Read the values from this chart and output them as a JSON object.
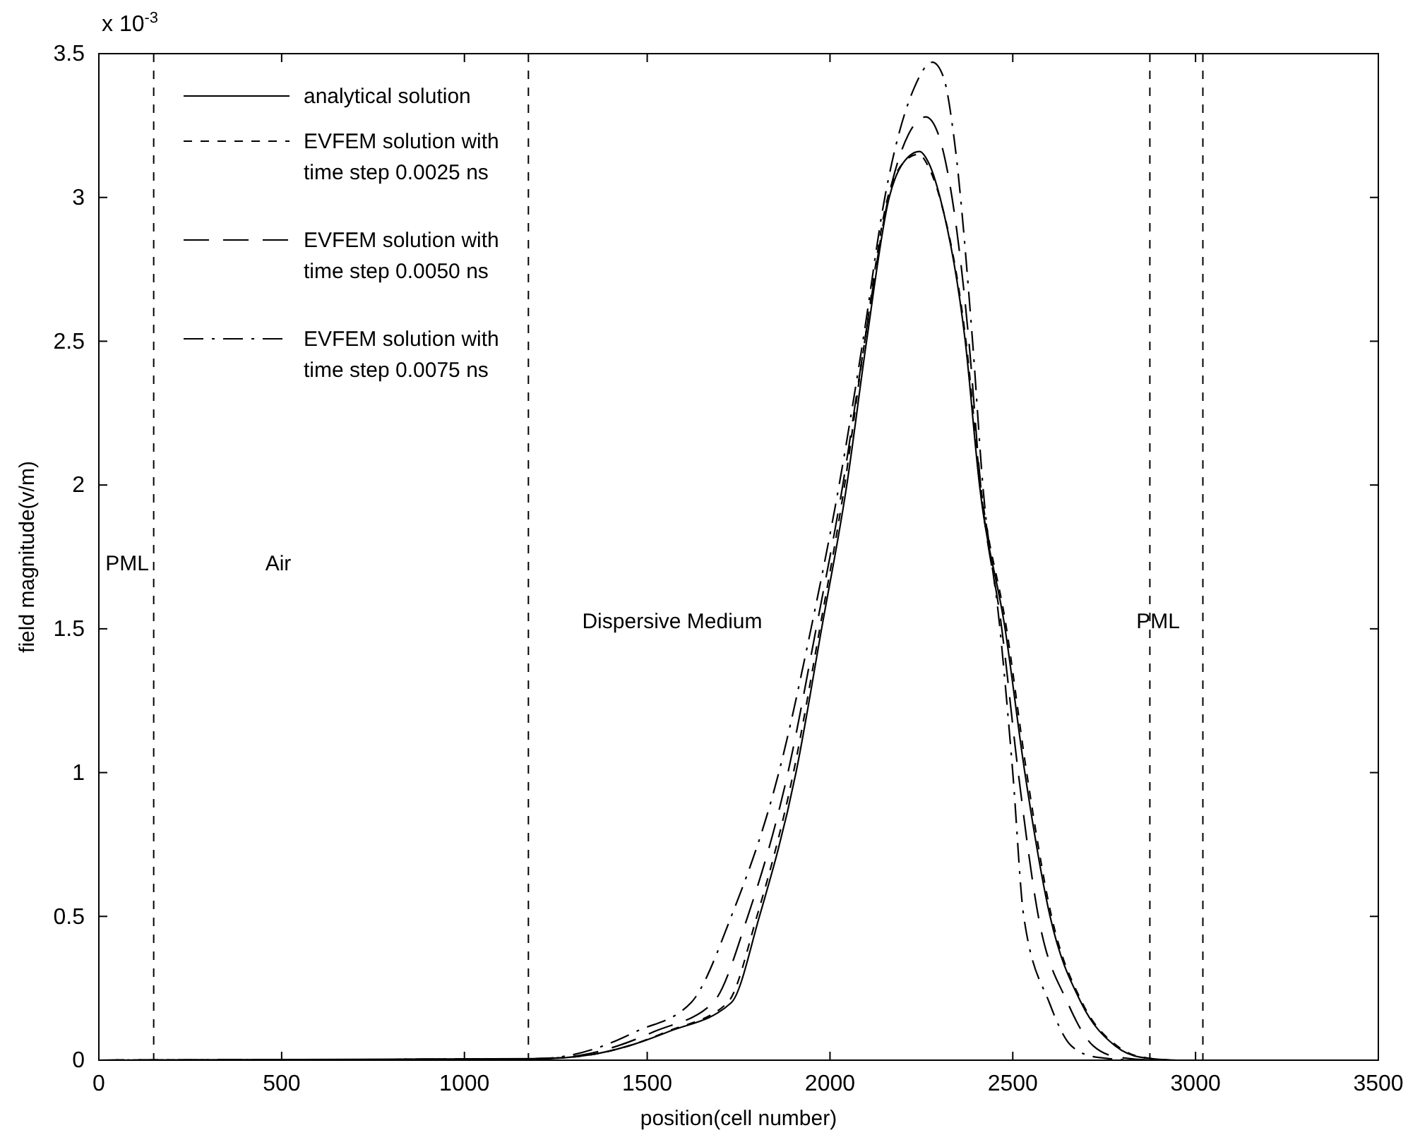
{
  "chart_data": {
    "type": "line",
    "xlabel": "position(cell number)",
    "ylabel": "field magnitude(v/m)",
    "xlim": [
      0,
      3500
    ],
    "xticks": [
      0,
      500,
      1000,
      1500,
      2000,
      2500,
      3000,
      3500
    ],
    "ylim": [
      0,
      3.5
    ],
    "yticks": [
      0,
      0.5,
      1,
      1.5,
      2,
      2.5,
      3,
      3.5
    ],
    "grid": false,
    "legend": "top left",
    "marker": "none",
    "series": [
      {
        "name": "analytical solution",
        "color": "#000000",
        "line_style": "solid",
        "x": [
          0,
          1200,
          1350,
          1450,
          1560,
          1730,
          1807,
          1907,
          1977,
          2046,
          2100,
          2162,
          2200,
          2245,
          2270,
          2301,
          2370,
          2409,
          2479,
          2533,
          2602,
          2687,
          2780,
          2850,
          2950,
          3500
        ],
        "values": [
          0,
          0.005,
          0.02,
          0.05,
          0.1,
          0.2,
          0.5,
          1.0,
          1.5,
          2.0,
          2.5,
          3.0,
          3.12,
          3.16,
          3.12,
          3.0,
          2.5,
          2.0,
          1.5,
          1.0,
          0.5,
          0.2,
          0.05,
          0.01,
          0,
          0
        ]
      },
      {
        "name": "EVFEM solution with time step 0.0025 ns",
        "color": "#000000",
        "line_style": "dashed",
        "x": [
          0,
          1200,
          1350,
          1450,
          1555,
          1720,
          1800,
          1900,
          1972,
          2040,
          2095,
          2158,
          2200,
          2242,
          2268,
          2300,
          2372,
          2412,
          2483,
          2538,
          2606,
          2690,
          2785,
          2855,
          2950,
          3500
        ],
        "values": [
          0,
          0.005,
          0.02,
          0.05,
          0.1,
          0.2,
          0.5,
          1.0,
          1.5,
          2.0,
          2.5,
          3.0,
          3.12,
          3.15,
          3.11,
          3.0,
          2.5,
          2.0,
          1.5,
          1.0,
          0.5,
          0.2,
          0.05,
          0.01,
          0,
          0
        ]
      },
      {
        "name": "EVFEM solution with time step 0.0050 ns",
        "color": "#000000",
        "line_style": "longdash",
        "x": [
          0,
          1200,
          1330,
          1420,
          1520,
          1680,
          1775,
          1885,
          1962,
          2035,
          2095,
          2160,
          2215,
          2262,
          2290,
          2320,
          2380,
          2412,
          2470,
          2515,
          2570,
          2650,
          2720,
          2790,
          2900,
          3500
        ],
        "values": [
          0,
          0.005,
          0.02,
          0.05,
          0.1,
          0.2,
          0.5,
          1.0,
          1.5,
          2.0,
          2.5,
          3.0,
          3.22,
          3.28,
          3.24,
          3.1,
          2.5,
          2.0,
          1.5,
          1.0,
          0.5,
          0.2,
          0.05,
          0.01,
          0,
          0
        ]
      },
      {
        "name": "EVFEM solution with time step 0.0075 ns",
        "color": "#000000",
        "line_style": "dashdot",
        "x": [
          0,
          1200,
          1300,
          1380,
          1470,
          1620,
          1730,
          1860,
          1948,
          2025,
          2090,
          2150,
          2230,
          2280,
          2310,
          2340,
          2390,
          2418,
          2465,
          2500,
          2530,
          2600,
          2660,
          2730,
          2850,
          3500
        ],
        "values": [
          0,
          0.005,
          0.02,
          0.05,
          0.1,
          0.2,
          0.5,
          1.0,
          1.5,
          2.0,
          2.5,
          3.0,
          3.38,
          3.47,
          3.42,
          3.2,
          2.5,
          2.0,
          1.5,
          1.0,
          0.5,
          0.2,
          0.05,
          0.01,
          0,
          0
        ]
      }
    ],
    "ref_lines": [
      {
        "axis": "x",
        "value": 150,
        "line_style": "dashed"
      },
      {
        "axis": "x",
        "value": 1175,
        "line_style": "dashed"
      },
      {
        "axis": "x",
        "value": 2875,
        "line_style": "dashed"
      },
      {
        "axis": "x",
        "value": 3020,
        "line_style": "dashed"
      }
    ],
    "annotations": [
      "x 10$^{-3}$",
      "PML",
      "Air",
      "Dispersive Medium",
      "PML"
    ]
  }
}
